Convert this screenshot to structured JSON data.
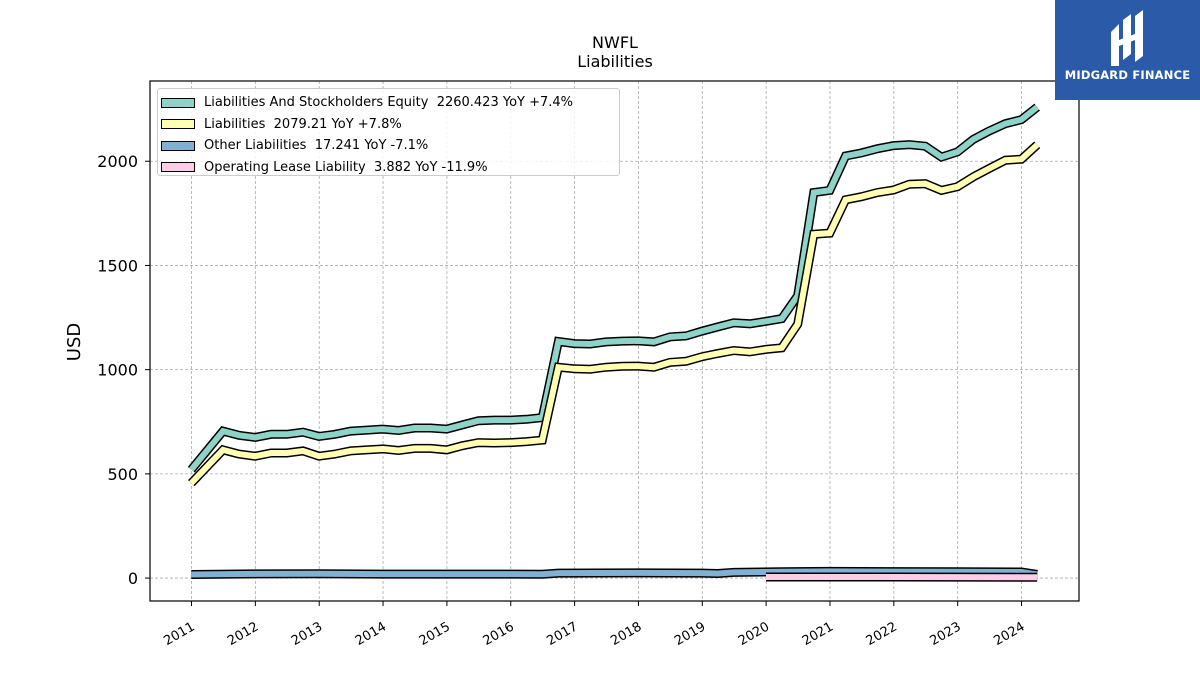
{
  "brand": {
    "name": "MIDGARD FINANCE",
    "bg_color": "#2a5aa8"
  },
  "chart_data": {
    "type": "line",
    "title": "NWFL",
    "subtitle": "Liabilities",
    "ylabel": "USD",
    "xlabel": "",
    "ylim": [
      -110,
      2385
    ],
    "xlim": [
      2010.35,
      2024.9
    ],
    "yticks": [
      0,
      500,
      1000,
      1500,
      2000
    ],
    "xticks": [
      "2011",
      "2012",
      "2013",
      "2014",
      "2015",
      "2016",
      "2017",
      "2018",
      "2019",
      "2020",
      "2021",
      "2022",
      "2023",
      "2024"
    ],
    "grid": true,
    "legend_position": "top-left",
    "series": [
      {
        "name": "Liabilities And Stockholders Equity",
        "legend": "Liabilities And Stockholders Equity  2260.423 YoY +7.4%",
        "color": "#8dd3c7",
        "x": [
          "2010-12-31",
          "2011-06-30",
          "2011-09-30",
          "2011-12-31",
          "2012-03-31",
          "2012-06-30",
          "2012-09-30",
          "2012-12-31",
          "2013-03-31",
          "2013-06-30",
          "2013-09-30",
          "2013-12-31",
          "2014-03-31",
          "2014-06-30",
          "2014-09-30",
          "2014-12-31",
          "2015-03-31",
          "2015-06-30",
          "2015-09-30",
          "2015-12-31",
          "2016-03-31",
          "2016-06-30",
          "2016-09-30",
          "2016-12-31",
          "2017-03-31",
          "2017-06-30",
          "2017-09-30",
          "2017-12-31",
          "2018-03-31",
          "2018-06-30",
          "2018-09-30",
          "2018-12-31",
          "2019-03-31",
          "2019-06-30",
          "2019-09-30",
          "2019-12-31",
          "2020-03-31",
          "2020-06-30",
          "2020-09-30",
          "2020-12-31",
          "2021-03-31",
          "2021-06-30",
          "2021-09-30",
          "2021-12-31",
          "2022-03-31",
          "2022-06-30",
          "2022-09-30",
          "2022-12-31",
          "2023-03-31",
          "2023-06-30",
          "2023-09-30",
          "2023-12-31",
          "2024-03-31"
        ],
        "values": [
          520,
          705,
          685,
          675,
          690,
          690,
          700,
          680,
          690,
          705,
          710,
          715,
          708,
          720,
          720,
          715,
          735,
          755,
          758,
          758,
          762,
          770,
          1135,
          1125,
          1123,
          1133,
          1137,
          1138,
          1133,
          1157,
          1162,
          1185,
          1205,
          1225,
          1220,
          1232,
          1245,
          1355,
          1850,
          1860,
          2025,
          2040,
          2060,
          2075,
          2080,
          2072,
          2020,
          2045,
          2105,
          2145,
          2180,
          2200,
          2260
        ]
      },
      {
        "name": "Liabilities",
        "legend": "Liabilities  2079.21 YoY +7.8%",
        "color": "#ffffb3",
        "x": [
          "2010-12-31",
          "2011-06-30",
          "2011-09-30",
          "2011-12-31",
          "2012-03-31",
          "2012-06-30",
          "2012-09-30",
          "2012-12-31",
          "2013-03-31",
          "2013-06-30",
          "2013-09-30",
          "2013-12-31",
          "2014-03-31",
          "2014-06-30",
          "2014-09-30",
          "2014-12-31",
          "2015-03-31",
          "2015-06-30",
          "2015-09-30",
          "2015-12-31",
          "2016-03-31",
          "2016-06-30",
          "2016-09-30",
          "2016-12-31",
          "2017-03-31",
          "2017-06-30",
          "2017-09-30",
          "2017-12-31",
          "2018-03-31",
          "2018-06-30",
          "2018-09-30",
          "2018-12-31",
          "2019-03-31",
          "2019-06-30",
          "2019-09-30",
          "2019-12-31",
          "2020-03-31",
          "2020-06-30",
          "2020-09-30",
          "2020-12-31",
          "2021-03-31",
          "2021-06-30",
          "2021-09-30",
          "2021-12-31",
          "2022-03-31",
          "2022-06-30",
          "2022-09-30",
          "2022-12-31",
          "2023-03-31",
          "2023-06-30",
          "2023-09-30",
          "2023-12-31",
          "2024-03-31"
        ],
        "values": [
          455,
          615,
          595,
          585,
          600,
          600,
          610,
          585,
          595,
          610,
          615,
          620,
          612,
          622,
          622,
          615,
          635,
          650,
          648,
          650,
          655,
          662,
          1012,
          1004,
          1002,
          1012,
          1016,
          1017,
          1012,
          1035,
          1040,
          1062,
          1078,
          1092,
          1085,
          1097,
          1105,
          1218,
          1650,
          1655,
          1815,
          1830,
          1850,
          1862,
          1890,
          1892,
          1860,
          1878,
          1925,
          1965,
          2005,
          2010,
          2079
        ]
      },
      {
        "name": "Other Liabilities",
        "legend": "Other Liabilities  17.241 YoY -7.1%",
        "color": "#80b1d3",
        "x": [
          "2010-12-31",
          "2011-12-31",
          "2012-12-31",
          "2013-12-31",
          "2014-12-31",
          "2015-12-31",
          "2016-06-30",
          "2016-09-30",
          "2017-12-31",
          "2018-12-31",
          "2019-03-31",
          "2019-06-30",
          "2020-03-31",
          "2020-12-31",
          "2021-12-31",
          "2022-12-31",
          "2023-12-31",
          "2024-03-31"
        ],
        "values": [
          17,
          20,
          21,
          19,
          19,
          19,
          18,
          24,
          25,
          24,
          22,
          27,
          30,
          32,
          31,
          30,
          29,
          17
        ]
      },
      {
        "name": "Operating Lease Liability",
        "legend": "Operating Lease Liability  3.882 YoY -11.9%",
        "color": "#fccde5",
        "x": [
          "2019-12-31",
          "2020-12-31",
          "2021-12-31",
          "2022-12-31",
          "2023-12-31",
          "2024-03-31"
        ],
        "values": [
          5,
          5,
          5,
          4.5,
          4.4,
          3.9
        ]
      }
    ]
  }
}
